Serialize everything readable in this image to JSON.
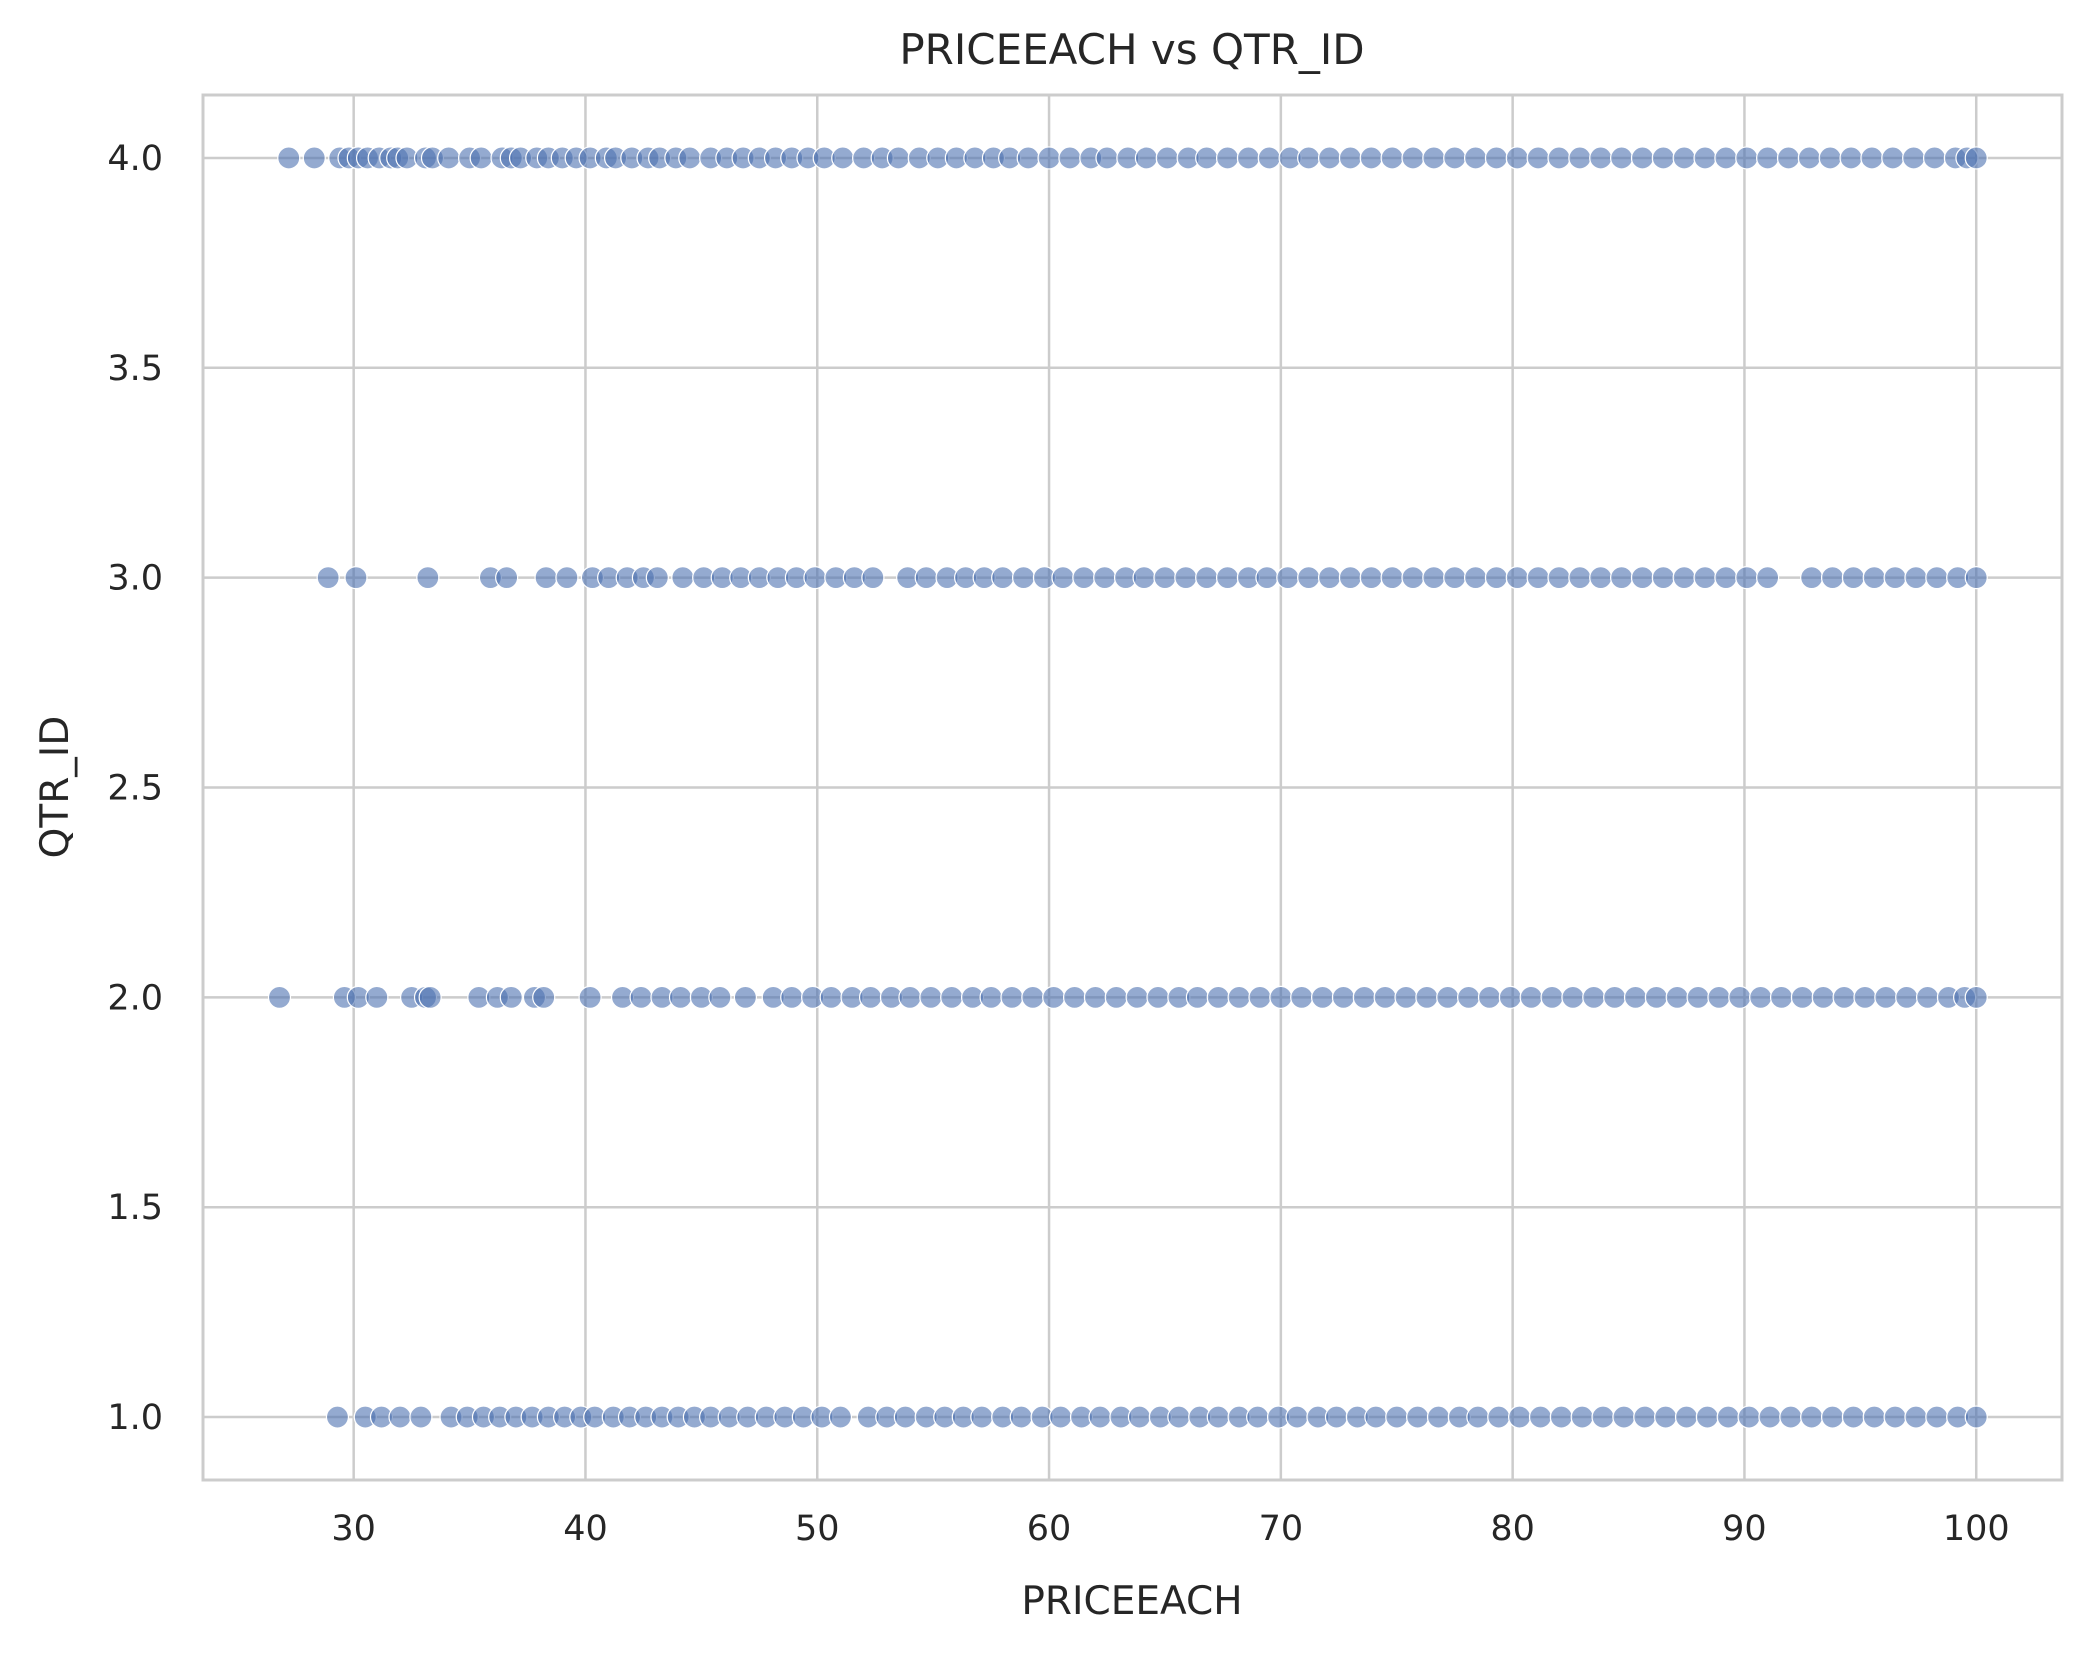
{
  "chart_data": {
    "type": "scatter",
    "title": "PRICEEACH vs QTR_ID",
    "xlabel": "PRICEEACH",
    "ylabel": "QTR_ID",
    "xlim": [
      23.5,
      103.7
    ],
    "ylim": [
      0.85,
      4.15
    ],
    "xticks": [
      30,
      40,
      50,
      60,
      70,
      80,
      90,
      100
    ],
    "xtick_labels": [
      "30",
      "40",
      "50",
      "60",
      "70",
      "80",
      "90",
      "100"
    ],
    "yticks": [
      1.0,
      1.5,
      2.0,
      2.5,
      3.0,
      3.5,
      4.0
    ],
    "ytick_labels": [
      "1.0",
      "1.5",
      "2.0",
      "2.5",
      "3.0",
      "3.5",
      "4.0"
    ],
    "grid": true,
    "point_color": "#4c72b0",
    "series": [
      {
        "values": [
          {
            "y": 4,
            "x": [
              27.2,
              28.3,
              29.4,
              29.8,
              30.2,
              30.6,
              31.1,
              31.6,
              31.9,
              32.3,
              33.1,
              33.4,
              34.1,
              35.0,
              35.5,
              36.4,
              36.8,
              37.2,
              37.9,
              38.4,
              39.0,
              39.6,
              40.2,
              40.9,
              41.3,
              42.0,
              42.7,
              43.2,
              43.9,
              44.5,
              45.4,
              46.1,
              46.8,
              47.5,
              48.2,
              48.9,
              49.6,
              50.3,
              51.1,
              52.0,
              52.8,
              53.5,
              54.4,
              55.2,
              56.0,
              56.8,
              57.6,
              58.3,
              59.1,
              60.0,
              60.9,
              61.8,
              62.5,
              63.4,
              64.2,
              65.1,
              66.0,
              66.8,
              67.7,
              68.6,
              69.5,
              70.4,
              71.2,
              72.1,
              73.0,
              73.9,
              74.8,
              75.7,
              76.6,
              77.5,
              78.4,
              79.3,
              80.2,
              81.1,
              82.0,
              82.9,
              83.8,
              84.7,
              85.6,
              86.5,
              87.4,
              88.3,
              89.2,
              90.1,
              91.0,
              91.9,
              92.8,
              93.7,
              94.6,
              95.5,
              96.4,
              97.3,
              98.2,
              99.1,
              99.6,
              100.0
            ]
          },
          {
            "y": 3,
            "x": [
              28.9,
              30.1,
              33.2,
              35.9,
              36.6,
              38.3,
              39.2,
              40.3,
              41.0,
              41.8,
              42.5,
              43.1,
              44.2,
              45.1,
              45.9,
              46.7,
              47.5,
              48.3,
              49.1,
              49.9,
              50.8,
              51.6,
              52.4,
              53.9,
              54.7,
              55.6,
              56.4,
              57.2,
              58.0,
              58.9,
              59.8,
              60.6,
              61.5,
              62.4,
              63.3,
              64.1,
              65.0,
              65.9,
              66.8,
              67.7,
              68.6,
              69.4,
              70.3,
              71.2,
              72.1,
              73.0,
              73.9,
              74.8,
              75.7,
              76.6,
              77.5,
              78.4,
              79.3,
              80.2,
              81.1,
              82.0,
              82.9,
              83.8,
              84.7,
              85.6,
              86.5,
              87.4,
              88.3,
              89.2,
              90.1,
              91.0,
              92.9,
              93.8,
              94.7,
              95.6,
              96.5,
              97.4,
              98.3,
              99.2,
              100.0
            ]
          },
          {
            "y": 2,
            "x": [
              26.8,
              29.6,
              30.2,
              31.0,
              32.5,
              33.1,
              33.3,
              35.4,
              36.2,
              36.8,
              37.8,
              38.2,
              40.2,
              41.6,
              42.4,
              43.3,
              44.1,
              45.0,
              45.8,
              46.9,
              48.1,
              48.9,
              49.8,
              50.6,
              51.5,
              52.3,
              53.2,
              54.0,
              54.9,
              55.8,
              56.7,
              57.5,
              58.4,
              59.3,
              60.2,
              61.1,
              62.0,
              62.9,
              63.8,
              64.7,
              65.6,
              66.4,
              67.3,
              68.2,
              69.1,
              70.0,
              70.9,
              71.8,
              72.7,
              73.6,
              74.5,
              75.4,
              76.3,
              77.2,
              78.1,
              79.0,
              79.9,
              80.8,
              81.7,
              82.6,
              83.5,
              84.4,
              85.3,
              86.2,
              87.1,
              88.0,
              88.9,
              89.8,
              90.7,
              91.6,
              92.5,
              93.4,
              94.3,
              95.2,
              96.1,
              97.0,
              97.9,
              98.8,
              99.5,
              100.0
            ]
          },
          {
            "y": 1,
            "x": [
              29.3,
              30.5,
              31.2,
              32.0,
              32.9,
              34.2,
              34.9,
              35.6,
              36.3,
              37.0,
              37.7,
              38.4,
              39.1,
              39.8,
              40.4,
              41.2,
              41.9,
              42.6,
              43.3,
              44.0,
              44.7,
              45.4,
              46.2,
              47.0,
              47.8,
              48.6,
              49.4,
              50.2,
              51.0,
              52.2,
              53.0,
              53.8,
              54.7,
              55.5,
              56.3,
              57.1,
              58.0,
              58.8,
              59.7,
              60.5,
              61.4,
              62.2,
              63.1,
              63.9,
              64.8,
              65.6,
              66.5,
              67.3,
              68.2,
              69.0,
              69.9,
              70.7,
              71.6,
              72.4,
              73.3,
              74.1,
              75.0,
              75.9,
              76.8,
              77.7,
              78.5,
              79.4,
              80.3,
              81.2,
              82.1,
              83.0,
              83.9,
              84.8,
              85.7,
              86.6,
              87.5,
              88.4,
              89.3,
              90.2,
              91.1,
              92.0,
              92.9,
              93.8,
              94.7,
              95.6,
              96.5,
              97.4,
              98.3,
              99.2,
              100.0
            ]
          }
        ]
      }
    ]
  }
}
